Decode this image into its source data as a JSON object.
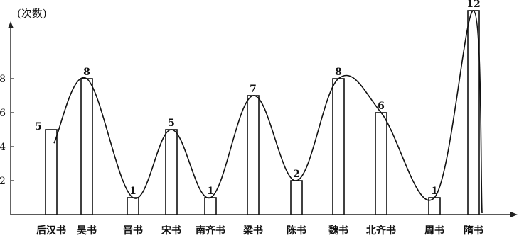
{
  "chart_data": {
    "type": "bar",
    "ylabel": "(次数)",
    "categories": [
      "后汉书",
      "吴书",
      "晋书",
      "宋书",
      "南齐书",
      "梁书",
      "陈书",
      "魏书",
      "北齐书",
      "周书",
      "隋书"
    ],
    "values": [
      5,
      8,
      1,
      5,
      1,
      7,
      2,
      8,
      6,
      1,
      12
    ],
    "yticks": [
      2,
      4,
      6,
      8
    ],
    "ylim": [
      0,
      12.5
    ],
    "smooth_curve": true,
    "grid": false,
    "legend": "none"
  }
}
